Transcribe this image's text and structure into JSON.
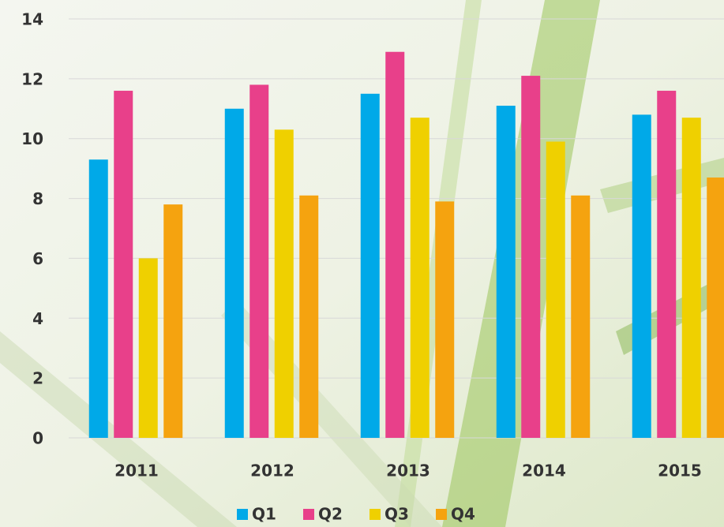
{
  "chart_data": {
    "type": "bar",
    "categories": [
      "2011",
      "2012",
      "2013",
      "2014",
      "2015"
    ],
    "series": [
      {
        "name": "Q1",
        "color": "#00a9e8",
        "values": [
          9.3,
          11.0,
          11.5,
          11.1,
          10.8
        ]
      },
      {
        "name": "Q2",
        "color": "#e8408a",
        "values": [
          11.6,
          11.8,
          12.9,
          12.1,
          11.6
        ]
      },
      {
        "name": "Q3",
        "color": "#efd000",
        "values": [
          6.0,
          10.3,
          10.7,
          9.9,
          10.7
        ]
      },
      {
        "name": "Q4",
        "color": "#f5a30f",
        "values": [
          7.8,
          8.1,
          7.9,
          8.1,
          8.7
        ]
      }
    ],
    "ylim": [
      0,
      14
    ],
    "yticks": [
      0,
      2,
      4,
      6,
      8,
      10,
      12,
      14
    ],
    "grid": true,
    "legend": "bottom"
  }
}
